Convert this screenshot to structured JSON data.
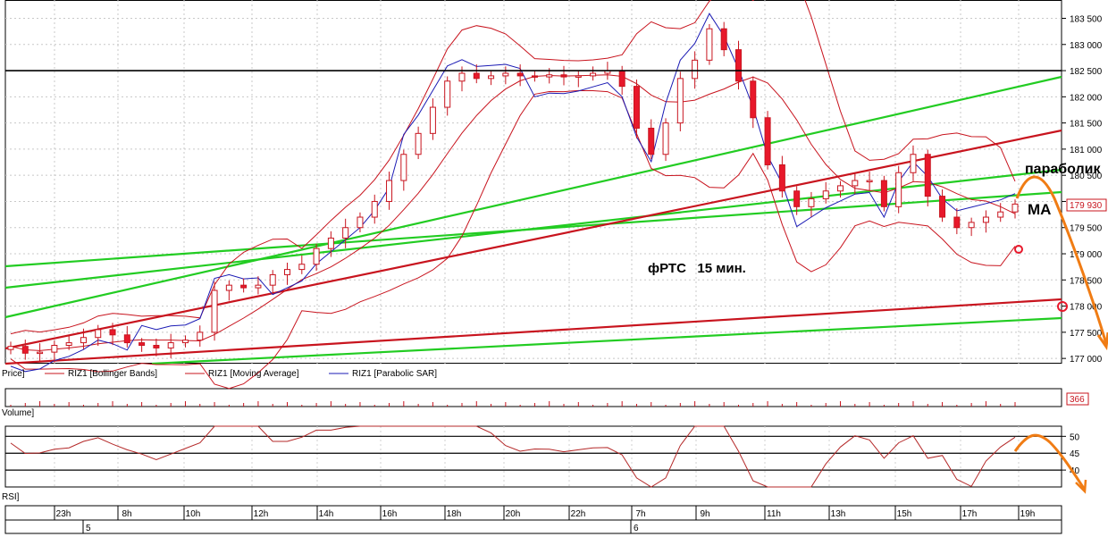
{
  "chart_data": {
    "type": "candlestick",
    "price_axis": {
      "ticks": [
        "183 500",
        "183 000",
        "182 500",
        "182 000",
        "181 500",
        "181 000",
        "180 500",
        "180 000",
        "179 500",
        "179 000",
        "178 500",
        "178 000",
        "177 500",
        "177 000"
      ],
      "tick_values": [
        183500,
        183000,
        182500,
        182000,
        181500,
        181000,
        180500,
        180000,
        179500,
        179000,
        178500,
        178000,
        177500,
        177000
      ],
      "ylim": [
        176900,
        183850
      ],
      "last_price_label": "179 930",
      "last_price": 179930
    },
    "time_axis": {
      "hour_labels": [
        "23h",
        "8h",
        "10h",
        "12h",
        "14h",
        "16h",
        "18h",
        "20h",
        "22h",
        "7h",
        "9h",
        "11h",
        "13h",
        "15h",
        "17h",
        "19h"
      ],
      "date_labels": [
        "5",
        "6"
      ]
    },
    "legend": {
      "price": "Price]",
      "bollinger": "RIZ1 [Bollinger Bands]",
      "ma": "RIZ1 [Moving Average]",
      "sar": "RIZ1 [Parabolic SAR]",
      "volume": "Volume]",
      "rsi": "RSI]"
    },
    "volume_panel": {
      "value_label": "366",
      "value": 366
    },
    "rsi_panel": {
      "ticks": [
        "50",
        "45",
        "40"
      ],
      "tick_values": [
        50,
        45,
        40
      ],
      "levels": [
        50,
        45,
        40
      ]
    },
    "horizontal_level": 182500,
    "annotations": {
      "parabolic": "параболик",
      "ma": "MA",
      "title": "фРТС   15 мин."
    },
    "close_path": [
      177230,
      177100,
      177120,
      177250,
      177300,
      177400,
      177550,
      177450,
      177300,
      177250,
      177200,
      177300,
      177350,
      177500,
      178300,
      178400,
      178350,
      178400,
      178600,
      178700,
      178800,
      179100,
      179300,
      179500,
      179700,
      180000,
      180400,
      180900,
      181300,
      181800,
      182300,
      182450,
      182350,
      182400,
      182450,
      182400,
      182380,
      182420,
      182380,
      182400,
      182450,
      182500,
      182200,
      181400,
      180900,
      181500,
      182350,
      182700,
      183300,
      182900,
      182300,
      181600,
      180700,
      180200,
      179900,
      180050,
      180200,
      180300,
      180400,
      180400,
      179900,
      180550,
      180900,
      180100,
      179700,
      179500,
      179600,
      179700,
      179800,
      179950
    ],
    "colors": {
      "up": "#ffffff",
      "down": "#e8182b",
      "green": "#22cc22",
      "red": "#c8141e",
      "sar": "#1a1ab4",
      "rsi": "#b42828",
      "arrow": "#f07c14"
    }
  }
}
